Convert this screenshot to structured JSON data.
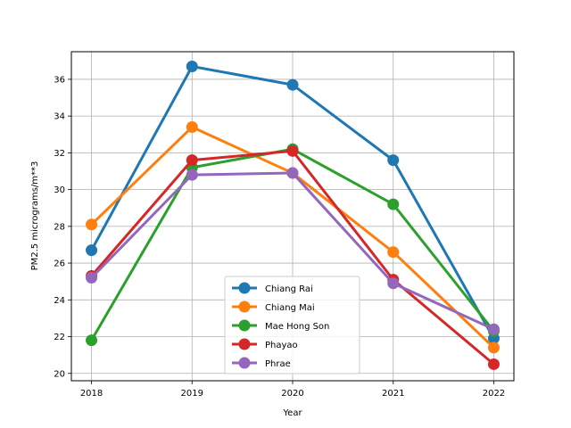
{
  "chart_data": {
    "type": "line",
    "title": "",
    "xlabel": "Year",
    "ylabel": "PM2.5 micrograms/m**3",
    "x": [
      2018,
      2019,
      2020,
      2021,
      2022
    ],
    "xticks": [
      "2018",
      "2019",
      "2020",
      "2021",
      "2022"
    ],
    "yticks": [
      "20",
      "22",
      "24",
      "26",
      "28",
      "30",
      "32",
      "34",
      "36"
    ],
    "ylim": [
      19.6,
      37.5
    ],
    "grid": true,
    "legend_position": "lower-center",
    "series": [
      {
        "name": "Chiang Rai",
        "color": "#1f77b4",
        "values": [
          26.7,
          36.7,
          35.7,
          31.6,
          21.9
        ]
      },
      {
        "name": "Chiang Mai",
        "color": "#ff7f0e",
        "values": [
          28.1,
          33.4,
          30.9,
          26.6,
          21.4
        ]
      },
      {
        "name": "Mae Hong Son",
        "color": "#2ca02c",
        "values": [
          21.8,
          31.2,
          32.2,
          29.2,
          22.3
        ]
      },
      {
        "name": "Phayao",
        "color": "#d62728",
        "values": [
          25.3,
          31.6,
          32.1,
          25.1,
          20.5
        ]
      },
      {
        "name": "Phrae",
        "color": "#9467bd",
        "values": [
          25.2,
          30.8,
          30.9,
          24.9,
          22.4
        ]
      }
    ]
  }
}
